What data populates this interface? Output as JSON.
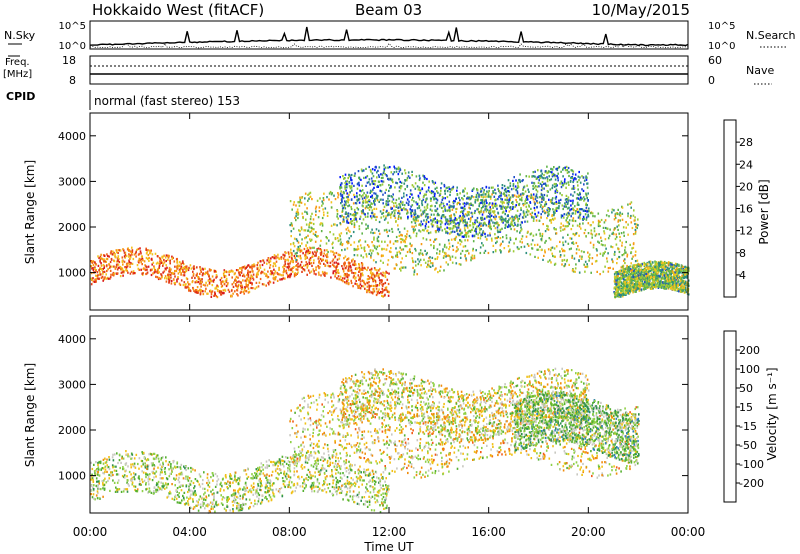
{
  "header": {
    "title": "Hokkaido West (fitACF)",
    "beam": "Beam 03",
    "date": "10/May/2015"
  },
  "noise_panel": {
    "left_label": "N.Sky",
    "left_ticks": [
      "10^5",
      "10^0"
    ],
    "right_ticks": [
      "10^5",
      "10^0"
    ],
    "right_label": "N.Search"
  },
  "freq_panel": {
    "left_label_1": "Freq.",
    "left_label_2": "[MHz]",
    "left_ticks": [
      "18",
      "8"
    ],
    "right_ticks": [
      "60",
      "0"
    ],
    "right_label": "Nave"
  },
  "cpid_panel": {
    "label": "CPID",
    "value": "normal (fast stereo) 153"
  },
  "axes": {
    "x_label": "Time UT",
    "x_ticks": [
      "00:00",
      "04:00",
      "08:00",
      "12:00",
      "16:00",
      "20:00",
      "00:00"
    ],
    "y_label": "Slant Range [km]",
    "y_ticks": [
      "1000",
      "2000",
      "3000",
      "4000"
    ]
  },
  "colorbars": {
    "power": {
      "label": "Power [dB]",
      "ticks": [
        "4",
        "8",
        "12",
        "16",
        "20",
        "24",
        "28"
      ],
      "colors": [
        "#0016ff",
        "#1f4fc8",
        "#2e8f7e",
        "#5fb349",
        "#9ccb35",
        "#f3c21d",
        "#f79a12",
        "#f26518",
        "#e03b18",
        "#d9191c"
      ]
    },
    "velocity": {
      "label": "Velocity [m s⁻¹]",
      "ticks": [
        "200",
        "100",
        "50",
        "15",
        "-15",
        "-50",
        "-100",
        "-200"
      ],
      "colors": [
        "#1f3fa8",
        "#2f7fb9",
        "#2e8f4e",
        "#55b030",
        "#8fd046",
        "#c8c8c0",
        "#f0c015",
        "#f08c0c",
        "#f25a18",
        "#e0201a"
      ]
    }
  },
  "chart_data": [
    {
      "type": "heatmap",
      "name": "Power [dB]",
      "x_range_hours": [
        0,
        24
      ],
      "y_range_km": [
        180,
        4500
      ],
      "zlim": [
        0,
        30
      ],
      "features": [
        {
          "desc": "near-range band",
          "t": [
            0,
            12
          ],
          "range_km": [
            700,
            1300
          ],
          "value": 22
        },
        {
          "desc": "main scatter",
          "t": [
            8,
            22
          ],
          "range_km": [
            1200,
            2600
          ],
          "value": 14
        },
        {
          "desc": "far-range scatter",
          "t": [
            10,
            20
          ],
          "range_km": [
            2000,
            3100
          ],
          "value": 8
        },
        {
          "desc": "late near-range",
          "t": [
            21,
            24
          ],
          "range_km": [
            400,
            1000
          ],
          "value": 12
        }
      ]
    },
    {
      "type": "heatmap",
      "name": "Velocity [m s-1]",
      "x_range_hours": [
        0,
        24
      ],
      "y_range_km": [
        180,
        4500
      ],
      "zlim": [
        -200,
        200
      ],
      "features": [
        {
          "desc": "ground scatter",
          "t": [
            0,
            12
          ],
          "range_km": [
            400,
            1300
          ],
          "value": 0
        },
        {
          "desc": "main scatter",
          "t": [
            8,
            22
          ],
          "range_km": [
            1200,
            2600
          ],
          "value": -40
        },
        {
          "desc": "far-range",
          "t": [
            10,
            20
          ],
          "range_km": [
            2000,
            3100
          ],
          "value": -30
        },
        {
          "desc": "evening positive",
          "t": [
            17,
            22
          ],
          "range_km": [
            1500,
            2600
          ],
          "value": 40
        }
      ]
    }
  ]
}
